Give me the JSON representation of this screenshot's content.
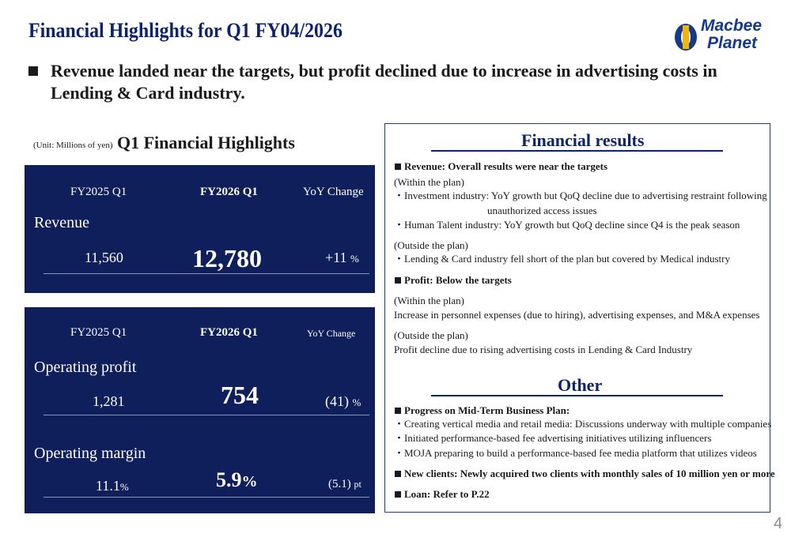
{
  "slide": {
    "title": "Financial Highlights for Q1 FY04/2026",
    "headline": "Revenue landed near the targets, but profit declined due to increase in advertising costs in Lending & Card industry.",
    "page_number": "4",
    "logo": {
      "line1": "Macbee",
      "line2": "Planet",
      "brand_color": "#143a8f"
    }
  },
  "highlights": {
    "unit": "(Unit: Millions of yen)",
    "title": "Q1 Financial Highlights",
    "revenue_panel": {
      "col_prev": "FY2025 Q1",
      "col_curr": "FY2026 Q1",
      "col_yoy": "YoY Change",
      "label": "Revenue",
      "prev": "11,560",
      "curr": "12,780",
      "yoy": "+11",
      "yoy_unit": "%"
    },
    "profit_panel": {
      "col_prev": "FY2025 Q1",
      "col_curr": "FY2026 Q1",
      "col_yoy": "YoY Change",
      "op_label": "Operating profit",
      "op_prev": "1,281",
      "op_curr": "754",
      "op_yoy": "(41)",
      "op_yoy_unit": "%",
      "om_label": "Operating margin",
      "om_prev": "11.1",
      "om_prev_unit": "%",
      "om_curr": "5.9",
      "om_curr_unit": "%",
      "om_yoy": "(5.1)",
      "om_yoy_unit": "pt"
    }
  },
  "results": {
    "title": "Financial results",
    "revenue_heading": "Revenue: Overall results were near the targets",
    "within_plan": "(Within the plan)",
    "inv_line1": "・Investment industry: YoY growth but QoQ decline due to advertising restraint following",
    "inv_line2": "unauthorized access issues",
    "human": "・Human Talent industry: YoY growth but QoQ decline since Q4 is the peak season",
    "outside_plan": "(Outside the plan)",
    "lending": "・Lending & Card industry fell short of the plan but covered by Medical industry",
    "profit_heading": "Profit: Below the targets",
    "within_plan2": "(Within the plan)",
    "personnel": "Increase in personnel expenses (due to hiring), advertising expenses, and M&A expenses",
    "outside_plan2": "(Outside the plan)",
    "profit_decline": "Profit decline due to rising advertising costs in Lending & Card Industry"
  },
  "other": {
    "title": "Other",
    "progress_heading": "Progress on Mid-Term Business Plan:",
    "item1": "・Creating vertical media and retail media: Discussions underway with multiple companies",
    "item2": "・Initiated performance-based fee advertising initiatives utilizing influencers",
    "item3": "・MOJA preparing to build a performance-based fee media platform that utilizes videos",
    "new_clients": "New clients: Newly acquired two clients with monthly sales of 10 million yen or more",
    "loan": "Loan: Refer to P.22"
  },
  "colors": {
    "navy_panel": "#0f1f5c",
    "title_blue": "#0d2372"
  }
}
